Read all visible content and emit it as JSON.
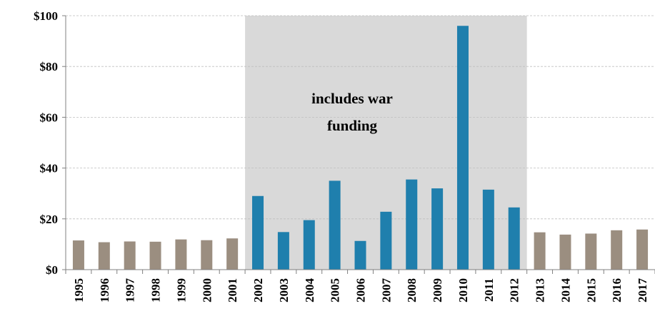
{
  "chart_data": {
    "type": "bar",
    "title": "",
    "xlabel": "",
    "ylabel": "",
    "ylim": [
      0,
      100
    ],
    "yticks": [
      0,
      20,
      40,
      60,
      80,
      100
    ],
    "ytick_labels": [
      "$0",
      "$20",
      "$40",
      "$60",
      "$80",
      "$100"
    ],
    "grid": true,
    "categories": [
      "1995",
      "1996",
      "1997",
      "1998",
      "1999",
      "2000",
      "2001",
      "2002",
      "2003",
      "2004",
      "2005",
      "2006",
      "2007",
      "2008",
      "2009",
      "2010",
      "2011",
      "2012",
      "2013",
      "2014",
      "2015",
      "2016",
      "2017"
    ],
    "values": [
      11.5,
      10.8,
      11.1,
      11.0,
      11.9,
      11.6,
      12.3,
      29.0,
      14.8,
      19.5,
      35.0,
      11.3,
      22.8,
      35.5,
      32.0,
      96.0,
      31.5,
      24.5,
      14.7,
      13.8,
      14.2,
      15.5,
      15.8
    ],
    "highlight_range": [
      "2002",
      "2012"
    ],
    "annotation": {
      "lines": [
        "includes war",
        "funding"
      ]
    },
    "colors": {
      "base_bar": "#9b8e80",
      "highlight_bar": "#1f7fad",
      "shade": "#d9d9d9",
      "grid": "#bfbfbf",
      "axis": "#808080"
    }
  }
}
